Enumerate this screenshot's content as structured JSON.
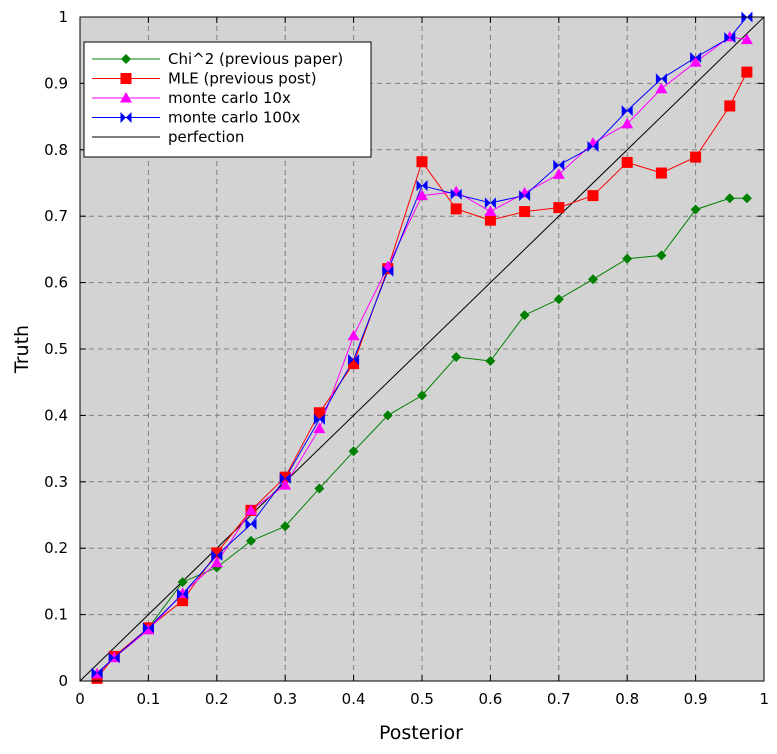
{
  "chart_data": {
    "type": "line",
    "title": "",
    "xlabel": "Posterior",
    "ylabel": "Truth",
    "xlim": [
      0,
      1
    ],
    "ylim": [
      0,
      1
    ],
    "xticks": [
      "0",
      "0.1",
      "0.2",
      "0.3",
      "0.4",
      "0.5",
      "0.6",
      "0.7",
      "0.8",
      "0.9",
      "1"
    ],
    "yticks": [
      "0",
      "0.1",
      "0.2",
      "0.3",
      "0.4",
      "0.5",
      "0.6",
      "0.7",
      "0.8",
      "0.9",
      "1"
    ],
    "grid": true,
    "background": "#d3d3d3",
    "legend_position": "top-left",
    "series": [
      {
        "name": "Chi^2 (previous paper)",
        "color": "#008000",
        "marker": "diamond",
        "x": [
          0.025,
          0.05,
          0.1,
          0.15,
          0.2,
          0.25,
          0.3,
          0.35,
          0.4,
          0.45,
          0.5,
          0.55,
          0.6,
          0.65,
          0.7,
          0.75,
          0.8,
          0.85,
          0.9,
          0.95,
          0.975
        ],
        "y": [
          0.01,
          0.036,
          0.08,
          0.149,
          0.171,
          0.211,
          0.233,
          0.29,
          0.346,
          0.4,
          0.43,
          0.488,
          0.482,
          0.551,
          0.575,
          0.605,
          0.636,
          0.641,
          0.71,
          0.727,
          0.727
        ]
      },
      {
        "name": "MLE (previous post)",
        "color": "#ff0000",
        "marker": "square",
        "x": [
          0.025,
          0.05,
          0.1,
          0.15,
          0.2,
          0.25,
          0.3,
          0.35,
          0.4,
          0.45,
          0.5,
          0.55,
          0.6,
          0.65,
          0.7,
          0.75,
          0.8,
          0.85,
          0.9,
          0.95,
          0.975
        ],
        "y": [
          0.004,
          0.037,
          0.08,
          0.121,
          0.193,
          0.257,
          0.307,
          0.404,
          0.478,
          0.621,
          0.782,
          0.711,
          0.694,
          0.707,
          0.713,
          0.731,
          0.781,
          0.765,
          0.789,
          0.866,
          0.917
        ]
      },
      {
        "name": "monte carlo 10x",
        "color": "#ff00ff",
        "marker": "triangle",
        "x": [
          0.025,
          0.05,
          0.1,
          0.15,
          0.2,
          0.25,
          0.3,
          0.35,
          0.4,
          0.45,
          0.5,
          0.55,
          0.6,
          0.65,
          0.7,
          0.75,
          0.8,
          0.85,
          0.9,
          0.95,
          0.975
        ],
        "y": [
          0.011,
          0.035,
          0.077,
          0.132,
          0.178,
          0.257,
          0.295,
          0.38,
          0.52,
          0.624,
          0.731,
          0.737,
          0.707,
          0.735,
          0.763,
          0.81,
          0.839,
          0.892,
          0.932,
          0.97,
          0.966
        ]
      },
      {
        "name": "monte carlo 100x",
        "color": "#0000ff",
        "marker": "bowtie",
        "x": [
          0.025,
          0.05,
          0.1,
          0.15,
          0.2,
          0.25,
          0.3,
          0.35,
          0.4,
          0.45,
          0.5,
          0.55,
          0.6,
          0.65,
          0.7,
          0.75,
          0.8,
          0.85,
          0.9,
          0.95,
          0.975
        ],
        "y": [
          0.012,
          0.035,
          0.08,
          0.131,
          0.189,
          0.236,
          0.305,
          0.394,
          0.484,
          0.617,
          0.746,
          0.733,
          0.72,
          0.731,
          0.777,
          0.805,
          0.859,
          0.907,
          0.939,
          0.969,
          1.0
        ]
      },
      {
        "name": "perfection",
        "color": "#000000",
        "marker": "none",
        "x": [
          0,
          1
        ],
        "y": [
          0,
          1
        ]
      }
    ]
  }
}
